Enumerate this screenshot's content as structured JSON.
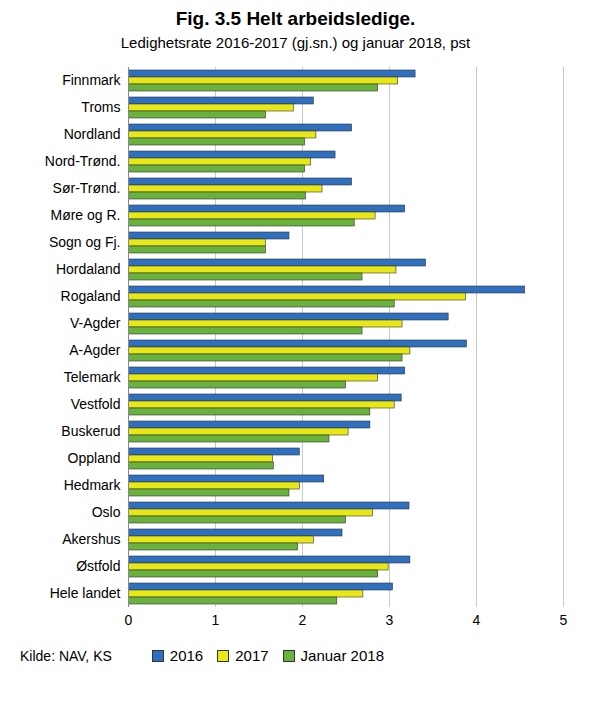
{
  "chart_data": {
    "type": "bar",
    "orientation": "horizontal",
    "title": "Fig. 3.5 Helt arbeidsledige.",
    "subtitle": "Ledighetsrate 2016-2017 (gj.sn.) og januar 2018, pst",
    "source": "Kilde: NAV, KS",
    "categories": [
      "Finnmark",
      "Troms",
      "Nordland",
      "Nord-Trønd.",
      "Sør-Trønd.",
      "Møre og R.",
      "Sogn og Fj.",
      "Hordaland",
      "Rogaland",
      "V-Agder",
      "A-Agder",
      "Telemark",
      "Vestfold",
      "Buskerud",
      "Oppland",
      "Hedmark",
      "Oslo",
      "Akershus",
      "Østfold",
      "Hele landet"
    ],
    "series": [
      {
        "name": "2016",
        "color": "#2f6fc0",
        "values": [
          3.3,
          2.13,
          2.57,
          2.38,
          2.57,
          3.18,
          1.85,
          3.42,
          4.56,
          3.68,
          3.89,
          3.18,
          3.14,
          2.78,
          1.97,
          2.25,
          3.23,
          2.46,
          3.24,
          3.04
        ]
      },
      {
        "name": "2017",
        "color": "#e8e817",
        "values": [
          3.1,
          1.9,
          2.16,
          2.1,
          2.23,
          2.84,
          1.58,
          3.08,
          3.88,
          3.15,
          3.24,
          2.87,
          3.06,
          2.53,
          1.66,
          1.97,
          2.81,
          2.13,
          2.99,
          2.7
        ]
      },
      {
        "name": "Januar 2018",
        "color": "#6ab23e",
        "values": [
          2.87,
          1.58,
          2.03,
          2.03,
          2.04,
          2.6,
          1.58,
          2.69,
          3.06,
          2.69,
          3.15,
          2.5,
          2.78,
          2.31,
          1.67,
          1.85,
          2.5,
          1.95,
          2.87,
          2.4
        ]
      }
    ],
    "xlim": [
      0,
      5
    ],
    "xticks": [
      0,
      1,
      2,
      3,
      4,
      5
    ],
    "grid": true,
    "legend": "bottom"
  }
}
